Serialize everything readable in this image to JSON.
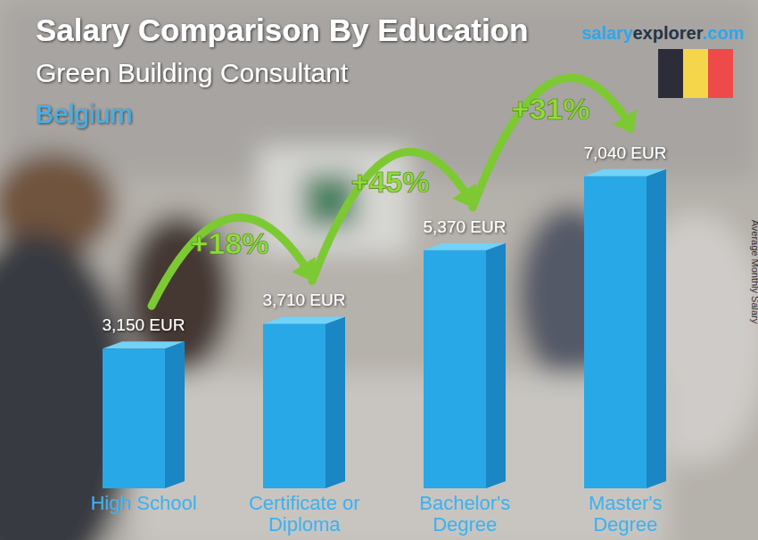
{
  "chart_data": {
    "type": "bar",
    "title": "Salary Comparison By Education",
    "subtitle": "Green Building Consultant",
    "region": "Belgium",
    "source": [
      "salary",
      "explorer",
      ".com"
    ],
    "y_label": "Average Monthly Salary",
    "categories": [
      "High School",
      "Certificate or\nDiploma",
      "Bachelor's\nDegree",
      "Master's\nDegree"
    ],
    "values": [
      3150,
      3710,
      5370,
      7040
    ],
    "value_labels": [
      "3,150 EUR",
      "3,710 EUR",
      "5,370 EUR",
      "7,040 EUR"
    ],
    "annotations": [
      "+18%",
      "+45%",
      "+31%"
    ],
    "color": "#29a8e8",
    "ylim": [
      0,
      8000
    ],
    "data_labels": true,
    "tick_labels": "x",
    "grid": false
  }
}
